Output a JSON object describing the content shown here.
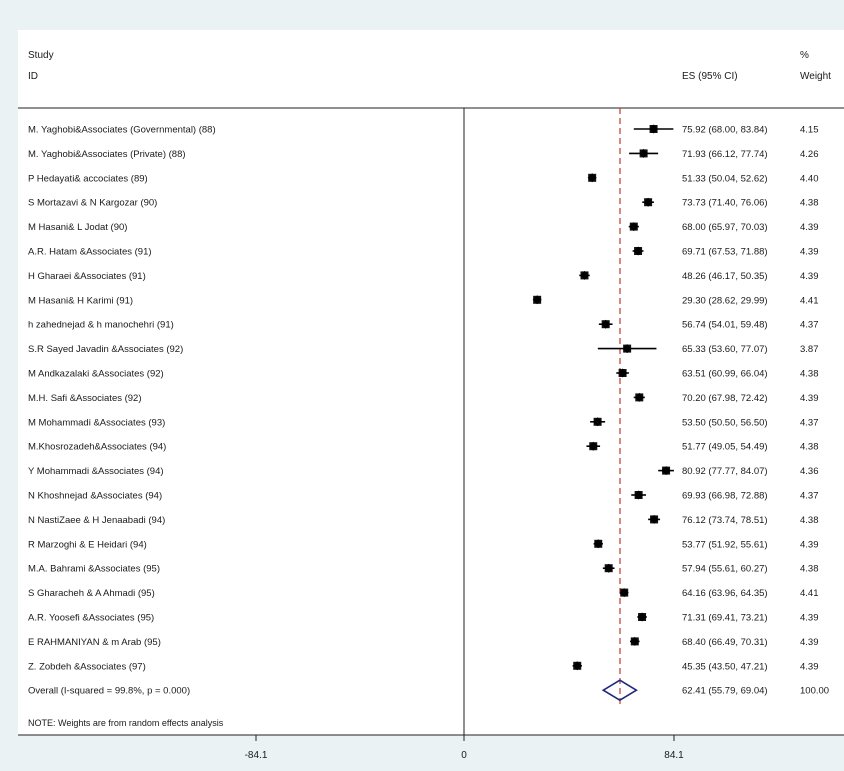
{
  "chart_data": {
    "type": "forest",
    "header": {
      "study": "Study",
      "id": "ID",
      "es": "ES (95% CI)",
      "weight_top": "%",
      "weight": "Weight"
    },
    "note": "NOTE: Weights are from random effects analysis",
    "xticks": [
      "-84.1",
      "0",
      "84.1"
    ],
    "xlim": [
      -84.1,
      84.1
    ],
    "reference_line": 0,
    "overall_line": 62.41,
    "studies": [
      {
        "label": "M. Yaghobi&Associates (Governmental) (88)",
        "es": 75.92,
        "lo": 68.0,
        "hi": 83.84,
        "ci_text": "75.92 (68.00, 83.84)",
        "weight": "4.15"
      },
      {
        "label": "M. Yaghobi&Associates (Private) (88)",
        "es": 71.93,
        "lo": 66.12,
        "hi": 77.74,
        "ci_text": "71.93 (66.12, 77.74)",
        "weight": "4.26"
      },
      {
        "label": "P Hedayati& accociates (89)",
        "es": 51.33,
        "lo": 50.04,
        "hi": 52.62,
        "ci_text": "51.33 (50.04, 52.62)",
        "weight": "4.40"
      },
      {
        "label": "S Mortazavi & N Kargozar (90)",
        "es": 73.73,
        "lo": 71.4,
        "hi": 76.06,
        "ci_text": "73.73 (71.40, 76.06)",
        "weight": "4.38"
      },
      {
        "label": "M Hasani& L Jodat (90)",
        "es": 68.0,
        "lo": 65.97,
        "hi": 70.03,
        "ci_text": "68.00 (65.97, 70.03)",
        "weight": "4.39"
      },
      {
        "label": "A.R. Hatam &Associates  (91)",
        "es": 69.71,
        "lo": 67.53,
        "hi": 71.88,
        "ci_text": "69.71 (67.53, 71.88)",
        "weight": "4.39"
      },
      {
        "label": "H Gharaei &Associates (91)",
        "es": 48.26,
        "lo": 46.17,
        "hi": 50.35,
        "ci_text": "48.26 (46.17, 50.35)",
        "weight": "4.39"
      },
      {
        "label": "M Hasani& H Karimi (91)",
        "es": 29.3,
        "lo": 28.62,
        "hi": 29.99,
        "ci_text": "29.30 (28.62, 29.99)",
        "weight": "4.41"
      },
      {
        "label": "h zahednejad & h manochehri  (91)",
        "es": 56.74,
        "lo": 54.01,
        "hi": 59.48,
        "ci_text": "56.74 (54.01, 59.48)",
        "weight": "4.37"
      },
      {
        "label": "S.R Sayed Javadin &Associates (92)",
        "es": 65.33,
        "lo": 53.6,
        "hi": 77.07,
        "ci_text": "65.33 (53.60, 77.07)",
        "weight": "3.87"
      },
      {
        "label": "M Andkazalaki &Associates (92)",
        "es": 63.51,
        "lo": 60.99,
        "hi": 66.04,
        "ci_text": "63.51 (60.99, 66.04)",
        "weight": "4.38"
      },
      {
        "label": "M.H. Safi &Associates (92)",
        "es": 70.2,
        "lo": 67.98,
        "hi": 72.42,
        "ci_text": "70.20 (67.98, 72.42)",
        "weight": "4.39"
      },
      {
        "label": "M Mohammadi &Associates (93)",
        "es": 53.5,
        "lo": 50.5,
        "hi": 56.5,
        "ci_text": "53.50 (50.50, 56.50)",
        "weight": "4.37"
      },
      {
        "label": "M.Khosrozadeh&Associates (94)",
        "es": 51.77,
        "lo": 49.05,
        "hi": 54.49,
        "ci_text": "51.77 (49.05, 54.49)",
        "weight": "4.38"
      },
      {
        "label": "Y Mohammadi &Associates (94)",
        "es": 80.92,
        "lo": 77.77,
        "hi": 84.07,
        "ci_text": "80.92 (77.77, 84.07)",
        "weight": "4.36"
      },
      {
        "label": "N Khoshnejad &Associates (94)",
        "es": 69.93,
        "lo": 66.98,
        "hi": 72.88,
        "ci_text": "69.93 (66.98, 72.88)",
        "weight": "4.37"
      },
      {
        "label": "N NastiZaee &  H Jenaabadi (94)",
        "es": 76.12,
        "lo": 73.74,
        "hi": 78.51,
        "ci_text": "76.12 (73.74, 78.51)",
        "weight": "4.38"
      },
      {
        "label": "R Marzoghi & E Heidari (94)",
        "es": 53.77,
        "lo": 51.92,
        "hi": 55.61,
        "ci_text": "53.77 (51.92, 55.61)",
        "weight": "4.39"
      },
      {
        "label": "M.A. Bahrami &Associates (95)",
        "es": 57.94,
        "lo": 55.61,
        "hi": 60.27,
        "ci_text": "57.94 (55.61, 60.27)",
        "weight": "4.38"
      },
      {
        "label": "S Gharacheh & A Ahmadi (95)",
        "es": 64.16,
        "lo": 63.96,
        "hi": 64.35,
        "ci_text": "64.16 (63.96, 64.35)",
        "weight": "4.41"
      },
      {
        "label": "A.R. Yoosefi &Associates (95)",
        "es": 71.31,
        "lo": 69.41,
        "hi": 73.21,
        "ci_text": "71.31 (69.41, 73.21)",
        "weight": "4.39"
      },
      {
        "label": "E RAHMANIYAN & m Arab (95)",
        "es": 68.4,
        "lo": 66.49,
        "hi": 70.31,
        "ci_text": "68.40 (66.49, 70.31)",
        "weight": "4.39"
      },
      {
        "label": "Z. Zobdeh &Associates (97)",
        "es": 45.35,
        "lo": 43.5,
        "hi": 47.21,
        "ci_text": "45.35 (43.50, 47.21)",
        "weight": "4.39"
      }
    ],
    "overall": {
      "label": "Overall  (I-squared = 99.8%, p = 0.000)",
      "es": 62.41,
      "lo": 55.79,
      "hi": 69.04,
      "ci_text": "62.41 (55.79, 69.04)",
      "weight": "100.00"
    },
    "colors": {
      "background": "#eaf2f3",
      "panel": "#ffffff",
      "marker": "#000000",
      "overall_diamond": "#1f2a7a",
      "overall_line": "#c0392b",
      "axis": "#222222"
    }
  }
}
